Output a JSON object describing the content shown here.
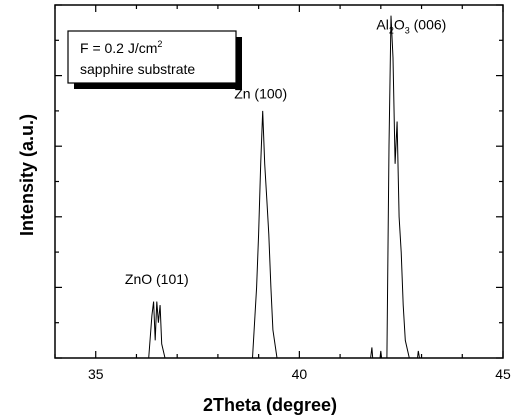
{
  "chart_data": {
    "type": "line",
    "title": "",
    "xlabel": "2Theta (degree)",
    "ylabel": "Intensity (a.u.)",
    "xlim": [
      34,
      45
    ],
    "ylim": [
      0,
      1
    ],
    "x_ticks": [
      35,
      40,
      45
    ],
    "x_tick_labels": [
      "35",
      "40",
      "45"
    ],
    "y_ticks_shown": true,
    "y_tick_labels": [],
    "grid": false,
    "legend_position": "top-left",
    "legend_lines": [
      "F = 0.2 J/cm",
      "sapphire substrate"
    ],
    "legend_superscript": "2",
    "series": [
      {
        "x": [
          36.3,
          36.38,
          36.42,
          36.46,
          36.5,
          36.54,
          36.58,
          36.62,
          36.7,
          38.85,
          38.95,
          39.0,
          39.05,
          39.1,
          39.15,
          39.2,
          39.25,
          39.3,
          39.35,
          39.45,
          41.75,
          41.78,
          41.8,
          41.98,
          42.0,
          42.02,
          42.15,
          42.2,
          42.25,
          42.3,
          42.35,
          42.4,
          42.45,
          42.5,
          42.55,
          42.6,
          42.7,
          42.9,
          42.92,
          42.95
        ],
        "y": [
          0,
          0.12,
          0.16,
          0.05,
          0.16,
          0.1,
          0.15,
          0.04,
          0,
          0,
          0.2,
          0.35,
          0.55,
          0.7,
          0.55,
          0.45,
          0.35,
          0.2,
          0.08,
          0,
          0,
          0.03,
          0,
          0,
          0.02,
          0,
          0,
          0.6,
          0.97,
          0.85,
          0.55,
          0.67,
          0.4,
          0.3,
          0.15,
          0.05,
          0,
          0,
          0.02,
          0
        ]
      }
    ],
    "annotations": [
      {
        "text": "ZnO (101)",
        "x": 36.5,
        "y": 0.21
      },
      {
        "text": "Zn (100)",
        "x": 39.05,
        "y": 0.735
      },
      {
        "main": "Al",
        "sub1": "2",
        "mid": "O",
        "sub2": "3",
        "rest": " (006)",
        "x": 42.75,
        "y": 0.93
      }
    ]
  }
}
